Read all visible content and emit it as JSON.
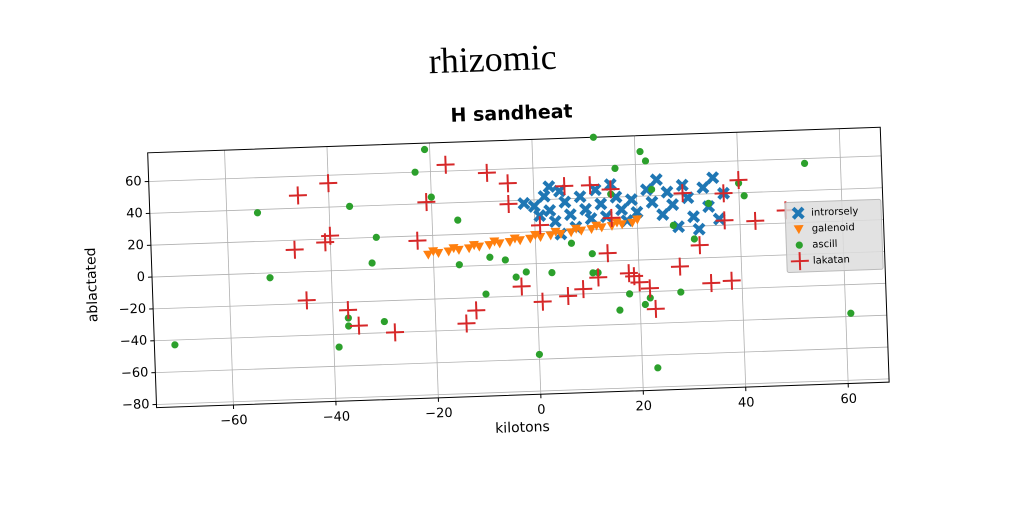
{
  "chart_data": {
    "type": "scatter",
    "suptitle": "rhizomic",
    "title": "H sandheat",
    "xlabel": "kilotons",
    "ylabel": "ablactated",
    "xlim": [
      -75,
      68
    ],
    "ylim": [
      -82,
      78
    ],
    "xticks": [
      {
        "value": -60,
        "label": "−60"
      },
      {
        "value": -40,
        "label": "−40"
      },
      {
        "value": -20,
        "label": "−20"
      },
      0,
      20,
      40,
      60
    ],
    "yticks": [
      {
        "value": -80,
        "label": "−80"
      },
      {
        "value": -60,
        "label": "−60"
      },
      {
        "value": -40,
        "label": "−40"
      },
      {
        "value": -20,
        "label": "−20"
      },
      0,
      20,
      40,
      60
    ],
    "grid": true,
    "legend": "center right",
    "series": [
      {
        "name": "introrsely",
        "color": "#1f77b4",
        "marker": "x",
        "x": [
          -2,
          0,
          1,
          2,
          3,
          4,
          5,
          6,
          7,
          8,
          9,
          10,
          11,
          12,
          13,
          14,
          15,
          16,
          17,
          18,
          19,
          20,
          22,
          23,
          24,
          25,
          26,
          27,
          28,
          29,
          30,
          31,
          32,
          33,
          34,
          35,
          36,
          37,
          5,
          3
        ],
        "y": [
          38,
          36,
          30,
          42,
          33,
          26,
          45,
          38,
          30,
          22,
          41,
          33,
          27,
          45,
          36,
          28,
          48,
          40,
          32,
          25,
          38,
          30,
          44,
          36,
          50,
          28,
          42,
          34,
          20,
          46,
          38,
          26,
          18,
          44,
          32,
          50,
          24,
          40,
          18,
          48
        ]
      },
      {
        "name": "galenoid",
        "color": "#ff7f0e",
        "marker": "v",
        "x": [
          -21,
          -19,
          -17,
          -15,
          -13,
          -11,
          -9,
          -7,
          -5,
          -3,
          -1,
          1,
          3,
          5,
          7,
          9,
          11,
          13,
          15,
          17,
          19,
          -20,
          -16,
          -12,
          -8,
          -4,
          0,
          4,
          8,
          12,
          16,
          20
        ],
        "y": [
          8,
          8.8,
          9.6,
          10.3,
          11.1,
          11.9,
          12.7,
          13.5,
          14.2,
          15,
          15.8,
          16.6,
          17.4,
          18.1,
          18.9,
          19.7,
          20.5,
          21.3,
          22,
          22.8,
          23.6,
          10,
          11.5,
          13,
          14.8,
          16.2,
          18,
          19.5,
          21,
          22.5,
          24,
          25.5
        ]
      },
      {
        "name": "ascill",
        "color": "#2ca02c",
        "marker": "o",
        "x": [
          -21,
          -54,
          -52,
          -71,
          -36,
          -32,
          -31,
          -37,
          -37,
          -39,
          -30,
          -23,
          -20,
          -15,
          -15,
          -10,
          -9,
          -6,
          -4,
          -2,
          0,
          3,
          7,
          12,
          11,
          15,
          16,
          11,
          12,
          16,
          18,
          21,
          22,
          21,
          22,
          23,
          28,
          27,
          31,
          34,
          40,
          41,
          53,
          61,
          23
        ],
        "y": [
          74,
          38,
          -3,
          -43,
          40,
          4,
          20,
          -30,
          -35,
          -48,
          -33,
          60,
          44,
          29,
          1,
          -18,
          5,
          3,
          -8,
          -5,
          -57,
          -6,
          12,
          78,
          -7,
          42,
          58,
          5,
          -7,
          -31,
          -21,
          68,
          62,
          -28,
          -24,
          -68,
          -21,
          21,
          12,
          34,
          46,
          38,
          57,
          -38,
          44
        ]
      },
      {
        "name": "lakatan",
        "color": "#d62728",
        "marker": "+",
        "x": [
          -46,
          -40,
          -47,
          -41,
          -40,
          -23,
          -21,
          -17,
          -9,
          -5,
          -5,
          1,
          6,
          11,
          15,
          15,
          -45,
          -37,
          -35,
          -28,
          -14,
          -12,
          -3,
          1,
          6,
          9,
          12,
          14,
          19,
          20,
          22,
          23,
          28,
          32,
          34,
          38,
          29,
          37,
          40,
          37,
          43,
          49,
          18
        ],
        "y": [
          48,
          55,
          14,
          18,
          22,
          17,
          41,
          64,
          58,
          51,
          38,
          24,
          48,
          48,
          45,
          27,
          -18,
          -25,
          -35,
          -40,
          -36,
          -28,
          -14,
          -24,
          -21,
          -17,
          -10,
          5,
          -10,
          -14,
          -18,
          -31,
          -5,
          8,
          -16,
          -15,
          41,
          40,
          48,
          23,
          22,
          28,
          -8
        ]
      }
    ]
  }
}
